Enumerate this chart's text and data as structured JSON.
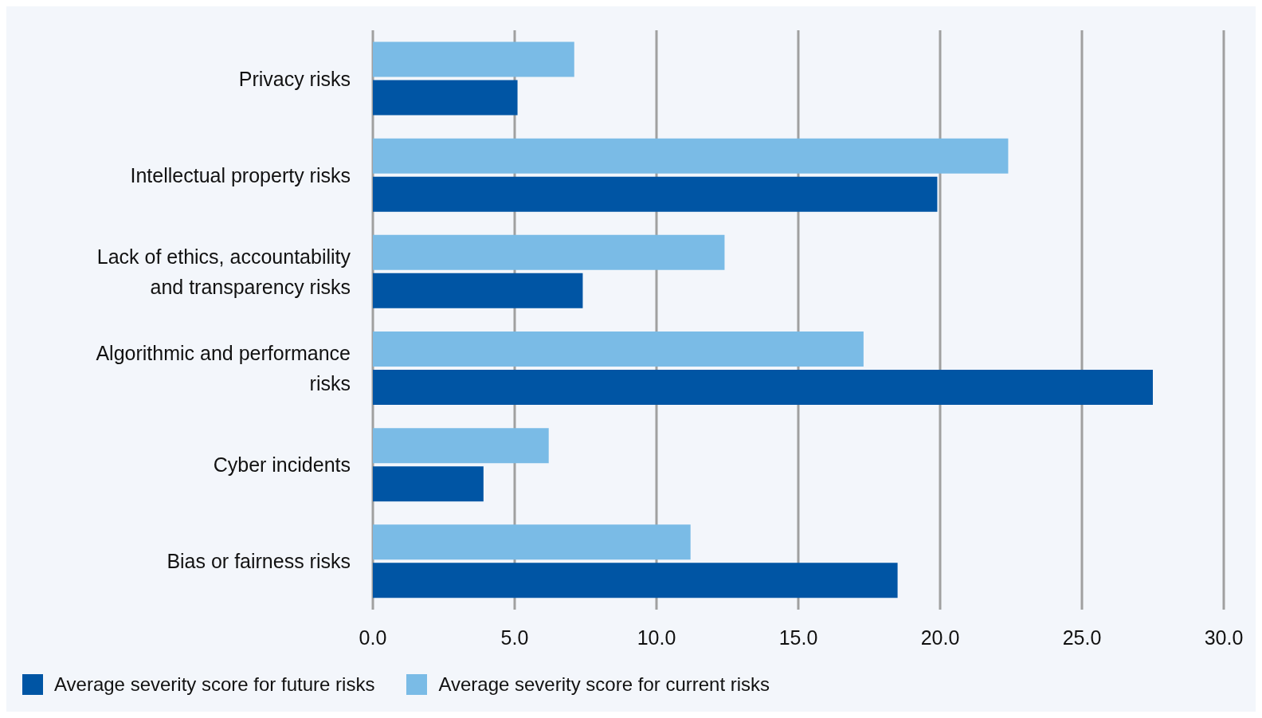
{
  "chart_data": {
    "type": "bar",
    "orientation": "horizontal",
    "categories": [
      "Privacy risks",
      "Intellectual property risks",
      "Lack of ethics, accountability and transparency risks",
      "Algorithmic and performance risks",
      "Cyber incidents",
      "Bias or fairness risks"
    ],
    "series": [
      {
        "name": "Average severity score for future risks",
        "color": "#0055a4",
        "values": [
          5.1,
          19.9,
          7.4,
          27.5,
          3.9,
          18.5
        ]
      },
      {
        "name": "Average severity score for current risks",
        "color": "#7abbe6",
        "values": [
          7.1,
          22.4,
          12.4,
          17.3,
          6.2,
          11.2
        ]
      }
    ],
    "xlim": [
      0,
      30
    ],
    "xticks": [
      {
        "value": 0,
        "label": "0.0"
      },
      {
        "value": 5,
        "label": "5.0"
      },
      {
        "value": 10,
        "label": "10.0"
      },
      {
        "value": 15,
        "label": "15.0"
      },
      {
        "value": 20,
        "label": "20.0"
      },
      {
        "value": 25,
        "label": "25.0"
      },
      {
        "value": 30,
        "label": "30.0"
      }
    ],
    "grid": "x",
    "legend": "bottom left"
  }
}
